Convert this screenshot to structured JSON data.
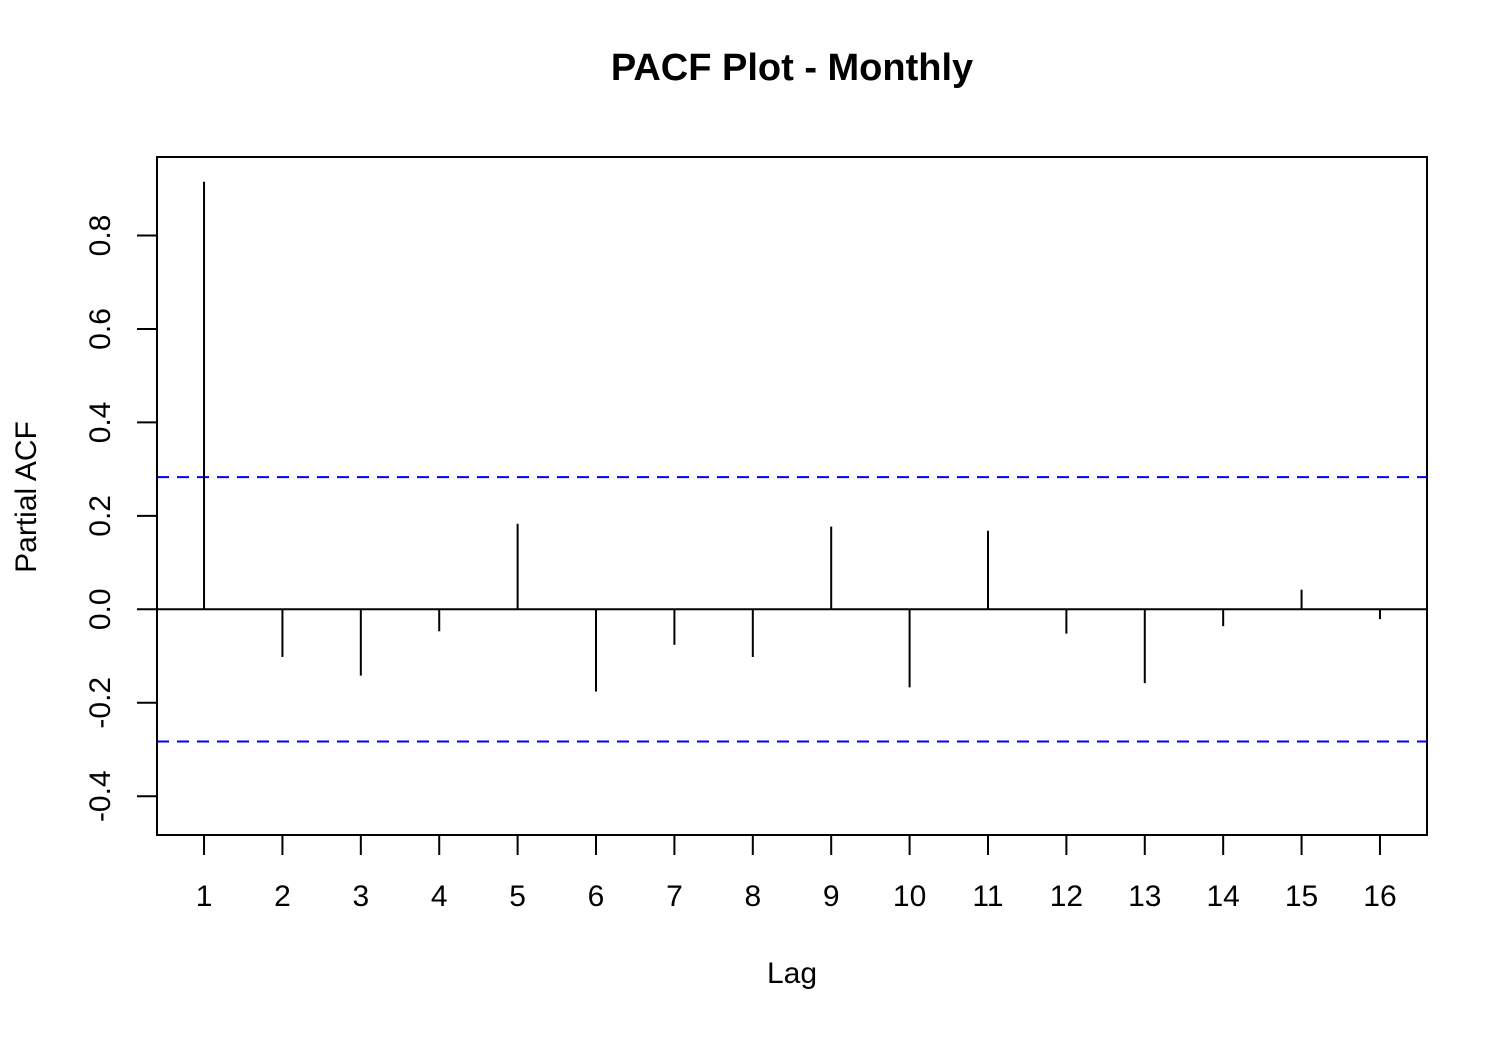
{
  "chart_data": {
    "type": "bar",
    "title": "PACF Plot - Monthly",
    "xlabel": "Lag",
    "ylabel": "Partial ACF",
    "x": [
      1,
      2,
      3,
      4,
      5,
      6,
      7,
      8,
      9,
      10,
      11,
      12,
      13,
      14,
      15,
      16
    ],
    "x_tick_labels": [
      "1",
      "2",
      "3",
      "4",
      "5",
      "6",
      "7",
      "8",
      "9",
      "10",
      "11",
      "12",
      "13",
      "14",
      "15",
      "16"
    ],
    "values": [
      0.915,
      -0.102,
      -0.142,
      -0.047,
      0.183,
      -0.176,
      -0.076,
      -0.102,
      0.177,
      -0.167,
      0.168,
      -0.052,
      -0.158,
      -0.036,
      0.042,
      -0.021
    ],
    "y_ticks": [
      -0.4,
      -0.2,
      0.0,
      0.2,
      0.4,
      0.6,
      0.8
    ],
    "y_tick_labels": [
      "-0.4",
      "-0.2",
      "0.0",
      "0.2",
      "0.4",
      "0.6",
      "0.8"
    ],
    "xlim": [
      0.4,
      16.6
    ],
    "ylim": [
      -0.483,
      0.968
    ],
    "confidence_bounds": [
      0.283,
      -0.283
    ],
    "colors": {
      "bars": "#000000",
      "confidence": "#0000ff",
      "zero_line": "#000000",
      "frame": "#000000"
    },
    "grid": false,
    "legend": "none"
  }
}
